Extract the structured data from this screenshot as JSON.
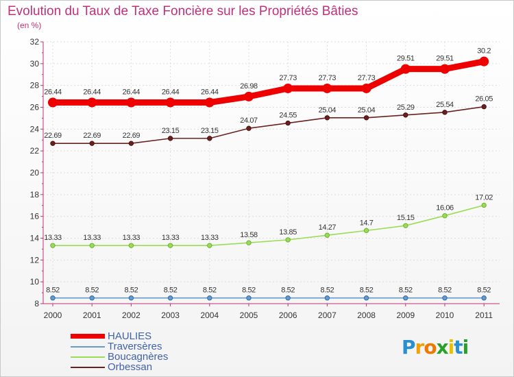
{
  "chart_data": {
    "type": "line",
    "title": "Evolution du Taux de Taxe Foncière sur les Propriétés Bâties",
    "subtitle": "(en %)",
    "categories": [
      "2000",
      "2001",
      "2002",
      "2003",
      "2004",
      "2005",
      "2006",
      "2007",
      "2008",
      "2009",
      "2010",
      "2011"
    ],
    "ylim": [
      8,
      32
    ],
    "yticks": [
      8,
      10,
      12,
      14,
      16,
      18,
      20,
      22,
      24,
      26,
      28,
      30,
      32
    ],
    "grid": true,
    "legend_position": "bottom-left",
    "series": [
      {
        "name": "HAULIES",
        "color": "#ee0000",
        "values": [
          26.44,
          26.44,
          26.44,
          26.44,
          26.44,
          26.98,
          27.73,
          27.73,
          27.73,
          29.51,
          29.51,
          30.2
        ],
        "labels": [
          "26.44",
          "26.44",
          "26.44",
          "26.44",
          "26.44",
          "26.98",
          "27.73",
          "27.73",
          "27.73",
          "29.51",
          "29.51",
          "30.2"
        ]
      },
      {
        "name": "Orbessan",
        "color": "#6b2020",
        "values": [
          22.69,
          22.69,
          22.69,
          23.15,
          23.15,
          24.07,
          24.55,
          25.04,
          25.04,
          25.29,
          25.54,
          26.05
        ],
        "labels": [
          "22.69",
          "22.69",
          "22.69",
          "23.15",
          "23.15",
          "24.07",
          "24.55",
          "25.04",
          "25.04",
          "25.29",
          "25.54",
          "26.05"
        ]
      },
      {
        "name": "Boucagnères",
        "color": "#99dd55",
        "values": [
          13.33,
          13.33,
          13.33,
          13.33,
          13.33,
          13.58,
          13.85,
          14.27,
          14.7,
          15.15,
          16.06,
          17.02
        ],
        "labels": [
          "13.33",
          "13.33",
          "13.33",
          "13.33",
          "13.33",
          "13.58",
          "13.85",
          "14.27",
          "14.7",
          "15.15",
          "16.06",
          "17.02"
        ]
      },
      {
        "name": "Traversères",
        "color": "#6699cc",
        "values": [
          8.52,
          8.52,
          8.52,
          8.52,
          8.52,
          8.52,
          8.52,
          8.52,
          8.52,
          8.52,
          8.52,
          8.52
        ],
        "labels": [
          "8.52",
          "8.52",
          "8.52",
          "8.52",
          "8.52",
          "8.52",
          "8.52",
          "8.52",
          "8.52",
          "8.52",
          "8.52",
          "8.52"
        ]
      }
    ]
  },
  "legend": [
    {
      "label": "HAULIES",
      "color": "#ee0000"
    },
    {
      "label": "Traversères",
      "color": "#6699cc"
    },
    {
      "label": "Boucagnères",
      "color": "#99dd55"
    },
    {
      "label": "Orbessan",
      "color": "#6b2020"
    }
  ],
  "logo": {
    "letters": [
      "P",
      "r",
      "o",
      "x",
      "i",
      "t",
      "i"
    ],
    "colors": [
      "#2a8fd0",
      "#f0a000",
      "#f07800",
      "#2aa02a",
      "#e8c000",
      "#2a8fd0",
      "#2aa02a"
    ]
  }
}
